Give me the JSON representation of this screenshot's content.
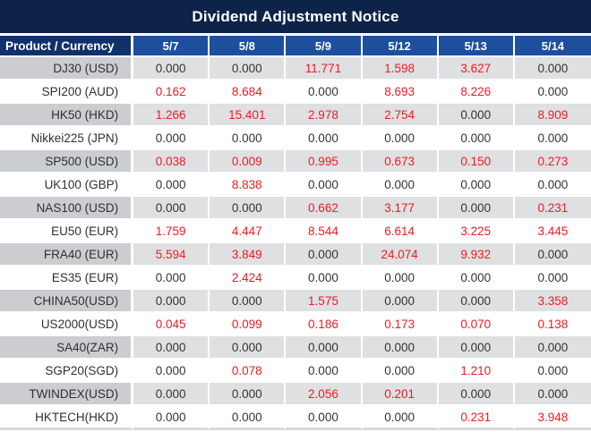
{
  "title": "Dividend Adjustment Notice",
  "table": {
    "product_header": "Product / Currency",
    "date_headers": [
      "5/7",
      "5/8",
      "5/9",
      "5/12",
      "5/13",
      "5/14"
    ],
    "rows": [
      {
        "product": "DJ30 (USD)",
        "values": [
          "0.000",
          "0.000",
          "11.771",
          "1.598",
          "3.627",
          "0.000"
        ]
      },
      {
        "product": "SPI200 (AUD)",
        "values": [
          "0.162",
          "8.684",
          "0.000",
          "8.693",
          "8.226",
          "0.000"
        ]
      },
      {
        "product": "HK50 (HKD)",
        "values": [
          "1.266",
          "15.401",
          "2.978",
          "2.754",
          "0.000",
          "8.909"
        ]
      },
      {
        "product": "Nikkei225 (JPN)",
        "values": [
          "0.000",
          "0.000",
          "0.000",
          "0.000",
          "0.000",
          "0.000"
        ]
      },
      {
        "product": "SP500 (USD)",
        "values": [
          "0.038",
          "0.009",
          "0.995",
          "0.673",
          "0.150",
          "0.273"
        ]
      },
      {
        "product": "UK100 (GBP)",
        "values": [
          "0.000",
          "8.838",
          "0.000",
          "0.000",
          "0.000",
          "0.000"
        ]
      },
      {
        "product": "NAS100 (USD)",
        "values": [
          "0.000",
          "0.000",
          "0.662",
          "3.177",
          "0.000",
          "0.231"
        ]
      },
      {
        "product": "EU50 (EUR)",
        "values": [
          "1.759",
          "4.447",
          "8.544",
          "6.614",
          "3.225",
          "3.445"
        ]
      },
      {
        "product": "FRA40 (EUR)",
        "values": [
          "5.594",
          "3.849",
          "0.000",
          "24.074",
          "9.932",
          "0.000"
        ]
      },
      {
        "product": "ES35 (EUR)",
        "values": [
          "0.000",
          "2.424",
          "0.000",
          "0.000",
          "0.000",
          "0.000"
        ]
      },
      {
        "product": "CHINA50(USD)",
        "values": [
          "0.000",
          "0.000",
          "1.575",
          "0.000",
          "0.000",
          "3.358"
        ]
      },
      {
        "product": "US2000(USD)",
        "values": [
          "0.045",
          "0.099",
          "0.186",
          "0.173",
          "0.070",
          "0.138"
        ]
      },
      {
        "product": "SA40(ZAR)",
        "values": [
          "0.000",
          "0.000",
          "0.000",
          "0.000",
          "0.000",
          "0.000"
        ]
      },
      {
        "product": "SGP20(SGD)",
        "values": [
          "0.000",
          "0.078",
          "0.000",
          "0.000",
          "1.210",
          "0.000"
        ]
      },
      {
        "product": "TWINDEX(USD)",
        "values": [
          "0.000",
          "0.000",
          "2.056",
          "0.201",
          "0.000",
          "0.000"
        ]
      },
      {
        "product": "HKTECH(HKD)",
        "values": [
          "0.000",
          "0.000",
          "0.000",
          "0.000",
          "0.231",
          "3.948"
        ]
      }
    ],
    "zero_value": "0.000"
  },
  "colors": {
    "title_bg": "#0d2347",
    "product_header_bg": "#11316b",
    "date_header_bg": "#1d4f9d",
    "gray_row_product_bg": "#cbcdd0",
    "gray_row_cell_bg": "#dfe0e2",
    "white_row_bg": "#ffffff",
    "highlight_red": "#ec1c24",
    "text_dark": "#333333",
    "bottom_border": "#d9d9d9"
  }
}
